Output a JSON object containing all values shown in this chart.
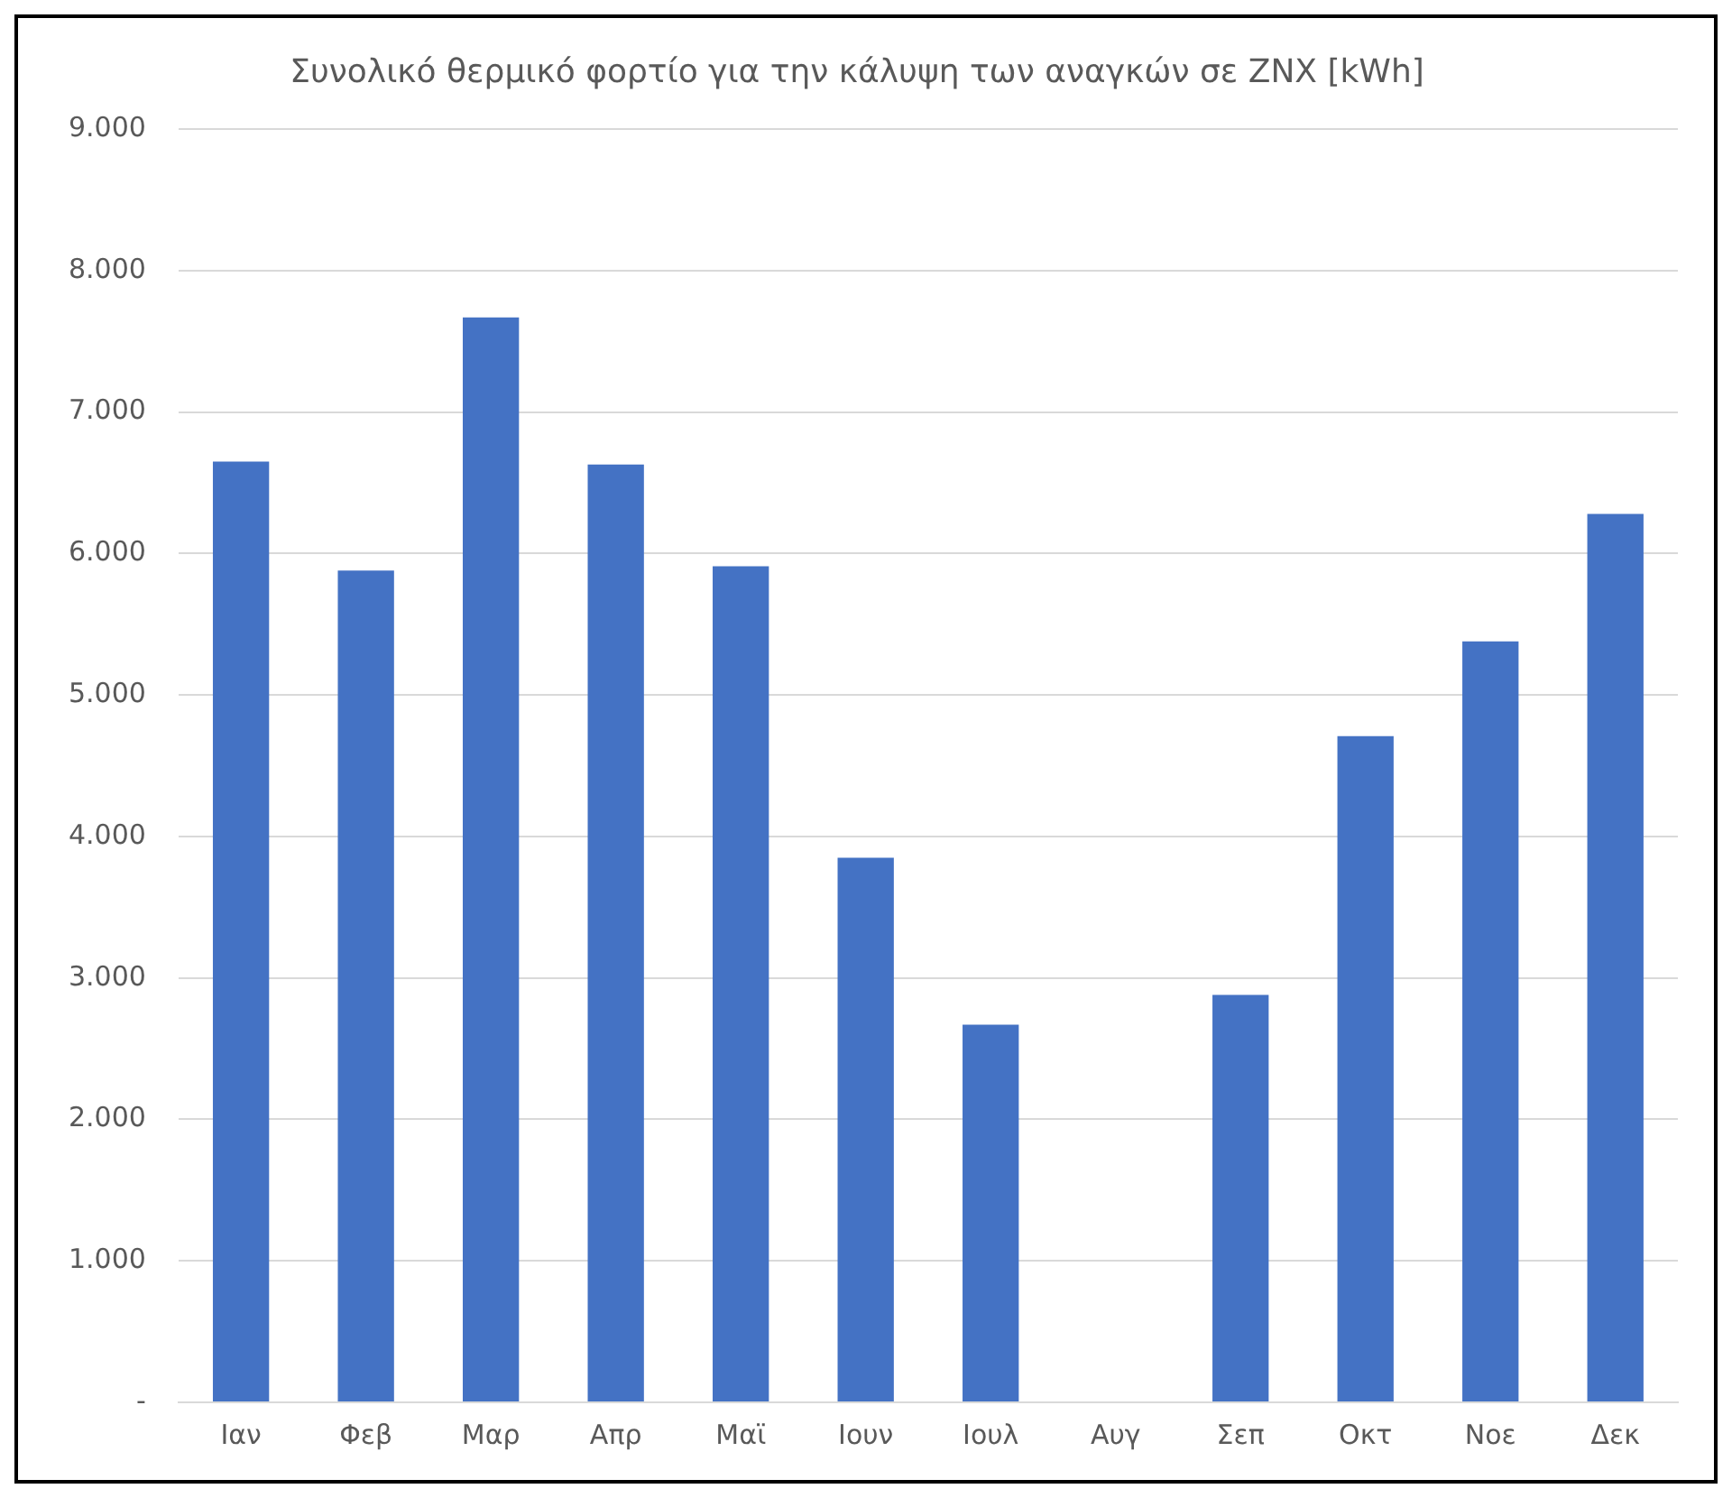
{
  "chart_data": {
    "type": "bar",
    "title": "Συνολικό θερμικό φορτίο για την κάλυψη των αναγκών σε ZNX [kWh]",
    "categories": [
      "Ιαν",
      "Φεβ",
      "Μαρ",
      "Απρ",
      "Μαϊ",
      "Ιουν",
      "Ιουλ",
      "Αυγ",
      "Σεπ",
      "Οκτ",
      "Νοε",
      "Δεκ"
    ],
    "values": [
      6650,
      5880,
      7670,
      6630,
      5910,
      3850,
      2670,
      0,
      2880,
      4710,
      5380,
      6280
    ],
    "color": "#4472c4",
    "ylim": [
      0,
      9000
    ],
    "yticks": [
      {
        "value": 0,
        "label": "-"
      },
      {
        "value": 1000,
        "label": "1.000"
      },
      {
        "value": 2000,
        "label": "2.000"
      },
      {
        "value": 3000,
        "label": "3.000"
      },
      {
        "value": 4000,
        "label": "4.000"
      },
      {
        "value": 5000,
        "label": "5.000"
      },
      {
        "value": 6000,
        "label": "6.000"
      },
      {
        "value": 7000,
        "label": "7.000"
      },
      {
        "value": 8000,
        "label": "8.000"
      },
      {
        "value": 9000,
        "label": "9.000"
      }
    ],
    "grid": "y",
    "legend": false
  }
}
